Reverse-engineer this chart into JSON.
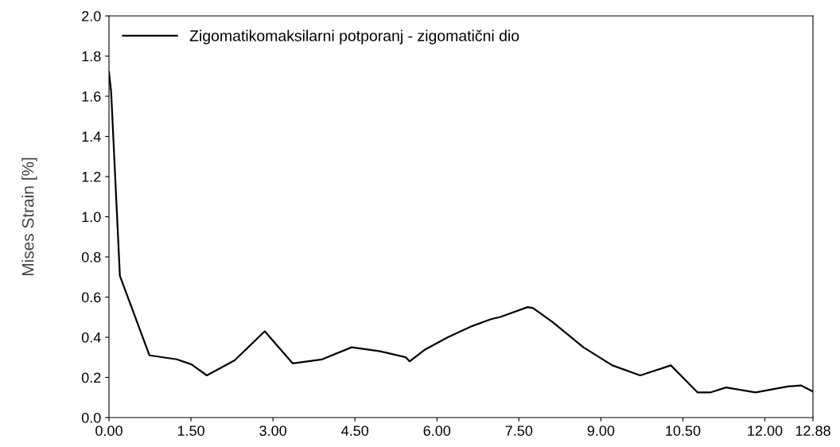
{
  "chart_data": {
    "type": "line",
    "ylabel": "Mises Strain [%]",
    "x": [
      0,
      0.04,
      0.2,
      0.74,
      1.24,
      1.51,
      1.79,
      2.3,
      2.85,
      3.36,
      3.9,
      4.44,
      4.96,
      5.43,
      5.5,
      5.79,
      6.2,
      6.64,
      6.99,
      7.15,
      7.66,
      7.76,
      8.12,
      8.68,
      9.21,
      9.72,
      10.28,
      10.77,
      11.0,
      11.29,
      11.83,
      12.42,
      12.66,
      12.88
    ],
    "series": [
      {
        "name": "Zigomatikomaksilarni potporanj - zigomatični dio",
        "color": "#000000",
        "values": [
          1.72,
          1.62,
          0.705,
          0.31,
          0.29,
          0.265,
          0.21,
          0.285,
          0.43,
          0.27,
          0.29,
          0.35,
          0.33,
          0.3,
          0.28,
          0.34,
          0.4,
          0.455,
          0.49,
          0.5,
          0.55,
          0.545,
          0.475,
          0.35,
          0.26,
          0.21,
          0.26,
          0.125,
          0.125,
          0.15,
          0.125,
          0.155,
          0.16,
          0.13
        ]
      }
    ],
    "xlim": [
      0,
      12.88
    ],
    "ylim": [
      0,
      2.0
    ],
    "xticks": [
      {
        "value": 0,
        "label": "0.00"
      },
      {
        "value": 1.5,
        "label": "1.50"
      },
      {
        "value": 3,
        "label": "3.00"
      },
      {
        "value": 4.5,
        "label": "4.50"
      },
      {
        "value": 6,
        "label": "6.00"
      },
      {
        "value": 7.5,
        "label": "7.50"
      },
      {
        "value": 9,
        "label": "9.00"
      },
      {
        "value": 10.5,
        "label": "10.50"
      },
      {
        "value": 12,
        "label": "12.00"
      },
      {
        "value": 12.88,
        "label": "12.88"
      }
    ],
    "yticks": [
      {
        "value": 0,
        "label": "0.0"
      },
      {
        "value": 0.2,
        "label": "0.2"
      },
      {
        "value": 0.4,
        "label": "0.4"
      },
      {
        "value": 0.6,
        "label": "0.6"
      },
      {
        "value": 0.8,
        "label": "0.8"
      },
      {
        "value": 1.0,
        "label": "1.0"
      },
      {
        "value": 1.2,
        "label": "1.2"
      },
      {
        "value": 1.4,
        "label": "1.4"
      },
      {
        "value": 1.6,
        "label": "1.6"
      },
      {
        "value": 1.8,
        "label": "1.8"
      },
      {
        "value": 2.0,
        "label": "2.0"
      }
    ],
    "grid": false,
    "legend": "top left",
    "marker": "none",
    "line_style": "solid"
  }
}
